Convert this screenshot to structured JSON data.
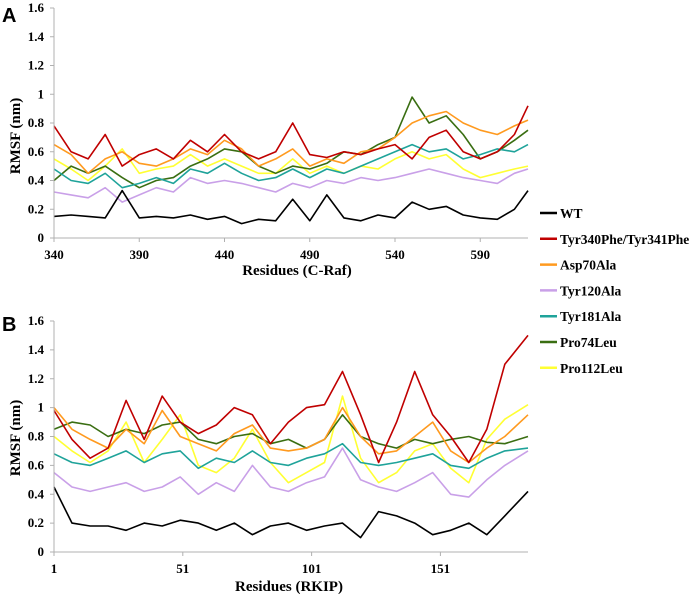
{
  "colors": {
    "WT": "#000000",
    "Tyr340Phe/Tyr341Phe": "#c00000",
    "Asp70Ala": "#ff9a1f",
    "Tyr120Ala": "#c9a0e8",
    "Tyr181Ala": "#1fa39a",
    "Pro74Leu": "#3a6e12",
    "Pro112Leu": "#ffff33"
  },
  "legend": [
    "WT",
    "Tyr340Phe/Tyr341Phe",
    "Asp70Ala",
    "Tyr120Ala",
    "Tyr181Ala",
    "Pro74Leu",
    "Pro112Leu"
  ],
  "chart_data": [
    {
      "panel": "A",
      "type": "line",
      "xlabel": "Residues (C-Raf)",
      "ylabel": "RMSF (nm)",
      "xlim": [
        340,
        618
      ],
      "ylim": [
        0,
        1.6
      ],
      "xticks": [
        "340",
        "390",
        "440",
        "490",
        "540",
        "590"
      ],
      "yticks": [
        "0",
        "0.2",
        "0.4",
        "0.6",
        "0.8",
        "1",
        "1.2",
        "1.4",
        "1.6"
      ],
      "x": [
        340,
        350,
        360,
        370,
        380,
        390,
        400,
        410,
        420,
        430,
        440,
        450,
        460,
        470,
        480,
        490,
        500,
        510,
        520,
        530,
        540,
        550,
        560,
        570,
        580,
        590,
        600,
        610,
        618
      ],
      "series": [
        {
          "name": "WT",
          "values": [
            0.15,
            0.16,
            0.15,
            0.14,
            0.33,
            0.14,
            0.15,
            0.14,
            0.16,
            0.13,
            0.15,
            0.1,
            0.13,
            0.12,
            0.27,
            0.12,
            0.3,
            0.14,
            0.12,
            0.16,
            0.14,
            0.25,
            0.2,
            0.22,
            0.16,
            0.14,
            0.13,
            0.2,
            0.33
          ]
        },
        {
          "name": "Tyr340Phe/Tyr341Phe",
          "values": [
            0.78,
            0.6,
            0.55,
            0.72,
            0.5,
            0.58,
            0.62,
            0.55,
            0.68,
            0.6,
            0.72,
            0.6,
            0.55,
            0.6,
            0.8,
            0.58,
            0.56,
            0.6,
            0.58,
            0.62,
            0.65,
            0.55,
            0.7,
            0.75,
            0.6,
            0.55,
            0.6,
            0.72,
            0.92
          ]
        },
        {
          "name": "Asp70Ala",
          "values": [
            0.65,
            0.58,
            0.45,
            0.55,
            0.6,
            0.52,
            0.5,
            0.55,
            0.62,
            0.58,
            0.68,
            0.62,
            0.5,
            0.55,
            0.62,
            0.5,
            0.55,
            0.52,
            0.6,
            0.62,
            0.7,
            0.8,
            0.85,
            0.88,
            0.8,
            0.75,
            0.72,
            0.78,
            0.82
          ]
        },
        {
          "name": "Tyr120Ala",
          "values": [
            0.32,
            0.3,
            0.28,
            0.35,
            0.25,
            0.3,
            0.35,
            0.32,
            0.42,
            0.38,
            0.4,
            0.38,
            0.35,
            0.32,
            0.38,
            0.35,
            0.4,
            0.38,
            0.42,
            0.4,
            0.42,
            0.45,
            0.48,
            0.45,
            0.42,
            0.4,
            0.38,
            0.45,
            0.48
          ]
        },
        {
          "name": "Tyr181Ala",
          "values": [
            0.48,
            0.4,
            0.38,
            0.45,
            0.35,
            0.38,
            0.42,
            0.38,
            0.48,
            0.45,
            0.52,
            0.45,
            0.4,
            0.42,
            0.48,
            0.42,
            0.48,
            0.45,
            0.5,
            0.55,
            0.6,
            0.65,
            0.6,
            0.62,
            0.55,
            0.58,
            0.62,
            0.6,
            0.65
          ]
        },
        {
          "name": "Pro74Leu",
          "values": [
            0.4,
            0.5,
            0.45,
            0.5,
            0.42,
            0.35,
            0.4,
            0.42,
            0.5,
            0.55,
            0.62,
            0.6,
            0.5,
            0.45,
            0.5,
            0.48,
            0.52,
            0.6,
            0.58,
            0.65,
            0.7,
            0.98,
            0.8,
            0.85,
            0.72,
            0.55,
            0.6,
            0.68,
            0.75
          ]
        },
        {
          "name": "Pro112Leu",
          "values": [
            0.55,
            0.48,
            0.4,
            0.5,
            0.62,
            0.45,
            0.48,
            0.5,
            0.58,
            0.5,
            0.55,
            0.5,
            0.45,
            0.45,
            0.55,
            0.45,
            0.5,
            0.45,
            0.5,
            0.48,
            0.55,
            0.6,
            0.55,
            0.58,
            0.48,
            0.42,
            0.45,
            0.48,
            0.5
          ]
        }
      ]
    },
    {
      "panel": "B",
      "type": "line",
      "xlabel": "Residues (RKIP)",
      "ylabel": "RMSF (nm)",
      "xlim": [
        1,
        185
      ],
      "ylim": [
        0,
        1.6
      ],
      "xticks": [
        "1",
        "51",
        "101",
        "151"
      ],
      "yticks": [
        "0",
        "0.2",
        "0.4",
        "0.6",
        "0.8",
        "1",
        "1.2",
        "1.4",
        "1.6"
      ],
      "x": [
        1,
        8,
        15,
        22,
        29,
        36,
        43,
        50,
        57,
        64,
        71,
        78,
        85,
        92,
        99,
        106,
        113,
        120,
        127,
        134,
        141,
        148,
        155,
        162,
        169,
        176,
        185
      ],
      "series": [
        {
          "name": "WT",
          "values": [
            0.45,
            0.2,
            0.18,
            0.18,
            0.15,
            0.2,
            0.18,
            0.22,
            0.2,
            0.15,
            0.2,
            0.12,
            0.18,
            0.2,
            0.15,
            0.18,
            0.2,
            0.1,
            0.28,
            0.25,
            0.2,
            0.12,
            0.15,
            0.2,
            0.12,
            0.25,
            0.42
          ]
        },
        {
          "name": "Tyr340Phe/Tyr341Phe",
          "values": [
            0.98,
            0.78,
            0.65,
            0.72,
            1.05,
            0.78,
            1.08,
            0.9,
            0.82,
            0.88,
            1.0,
            0.95,
            0.75,
            0.9,
            1.0,
            1.02,
            1.25,
            0.95,
            0.62,
            0.9,
            1.25,
            0.95,
            0.8,
            0.62,
            0.85,
            1.3,
            1.5
          ]
        },
        {
          "name": "Asp70Ala",
          "values": [
            1.0,
            0.85,
            0.78,
            0.72,
            0.85,
            0.75,
            0.98,
            0.8,
            0.75,
            0.7,
            0.82,
            0.88,
            0.72,
            0.7,
            0.72,
            0.78,
            1.0,
            0.8,
            0.68,
            0.7,
            0.8,
            0.9,
            0.7,
            0.62,
            0.72,
            0.8,
            0.95
          ]
        },
        {
          "name": "Tyr120Ala",
          "values": [
            0.55,
            0.45,
            0.42,
            0.45,
            0.48,
            0.42,
            0.45,
            0.52,
            0.4,
            0.48,
            0.42,
            0.6,
            0.45,
            0.42,
            0.48,
            0.52,
            0.72,
            0.5,
            0.45,
            0.42,
            0.48,
            0.55,
            0.4,
            0.38,
            0.5,
            0.6,
            0.7
          ]
        },
        {
          "name": "Tyr181Ala",
          "values": [
            0.68,
            0.62,
            0.6,
            0.65,
            0.7,
            0.62,
            0.68,
            0.7,
            0.58,
            0.65,
            0.62,
            0.7,
            0.62,
            0.6,
            0.65,
            0.68,
            0.75,
            0.62,
            0.6,
            0.62,
            0.65,
            0.68,
            0.6,
            0.58,
            0.65,
            0.7,
            0.72
          ]
        },
        {
          "name": "Pro74Leu",
          "values": [
            0.85,
            0.9,
            0.88,
            0.8,
            0.85,
            0.82,
            0.88,
            0.9,
            0.78,
            0.75,
            0.8,
            0.82,
            0.75,
            0.78,
            0.72,
            0.78,
            0.95,
            0.8,
            0.75,
            0.72,
            0.78,
            0.75,
            0.78,
            0.8,
            0.76,
            0.75,
            0.8
          ]
        },
        {
          "name": "Pro112Leu",
          "values": [
            0.8,
            0.7,
            0.62,
            0.7,
            0.9,
            0.62,
            0.78,
            0.95,
            0.6,
            0.55,
            0.65,
            0.85,
            0.62,
            0.48,
            0.55,
            0.62,
            1.08,
            0.65,
            0.48,
            0.55,
            0.7,
            0.75,
            0.58,
            0.48,
            0.78,
            0.92,
            1.02
          ]
        }
      ]
    }
  ]
}
